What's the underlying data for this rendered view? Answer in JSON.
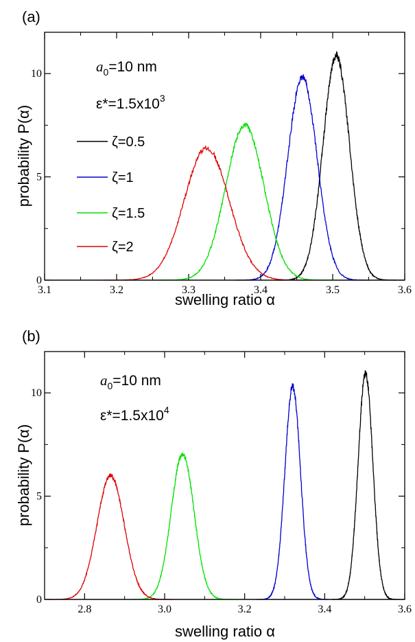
{
  "chart_data": [
    {
      "type": "line",
      "panel_label": "(a)",
      "xlabel": "swelling ratio  α",
      "ylabel": "probability  P(α)",
      "xlim": [
        3.1,
        3.6
      ],
      "ylim": [
        0,
        12
      ],
      "xticks": [
        "3.1",
        "3.2",
        "3.3",
        "3.4",
        "3.5",
        "3.6"
      ],
      "yticks": [
        "0",
        "5",
        "10"
      ],
      "xtick_values": [
        3.1,
        3.2,
        3.3,
        3.4,
        3.5,
        3.6
      ],
      "ytick_values": [
        0,
        5,
        10
      ],
      "grid": false,
      "annotations": {
        "a0_symbol": "a",
        "a0_sub": "0",
        "a0_value": "=10 nm",
        "eps_base": "ε*=1.5x10",
        "eps_exp": "3"
      },
      "legend_position": "left",
      "series": [
        {
          "name": "ζ=0.5",
          "color": "#000000",
          "mean": 3.505,
          "sigma": 0.0184,
          "peak": 10.85
        },
        {
          "name": "ζ=1",
          "color": "#0000cc",
          "mean": 3.458,
          "sigma": 0.0203,
          "peak": 9.85
        },
        {
          "name": "ζ=1.5",
          "color": "#00e000",
          "mean": 3.378,
          "sigma": 0.0267,
          "peak": 7.5
        },
        {
          "name": "ζ=2",
          "color": "#dd0000",
          "mean": 3.325,
          "sigma": 0.0312,
          "peak": 6.4
        }
      ]
    },
    {
      "type": "line",
      "panel_label": "(b)",
      "xlabel": "swelling ratio  α",
      "ylabel": "probability  P(α)",
      "xlim": [
        2.7,
        3.6
      ],
      "ylim": [
        0,
        12
      ],
      "xticks": [
        "2.8",
        "3.0",
        "3.2",
        "3.4",
        "3.6"
      ],
      "yticks": [
        "0",
        "5",
        "10"
      ],
      "xtick_values": [
        2.8,
        3.0,
        3.2,
        3.4,
        3.6
      ],
      "ytick_values": [
        0,
        5,
        10
      ],
      "grid": false,
      "annotations": {
        "a0_symbol": "a",
        "a0_sub": "0",
        "a0_value": "=10 nm",
        "eps_base": "ε*=1.5x10",
        "eps_exp": "4"
      },
      "series": [
        {
          "color": "#000000",
          "mean": 3.502,
          "sigma": 0.0184,
          "peak": 10.95
        },
        {
          "color": "#0000cc",
          "mean": 3.32,
          "sigma": 0.0195,
          "peak": 10.3
        },
        {
          "color": "#00e000",
          "mean": 3.045,
          "sigma": 0.0285,
          "peak": 7.05
        },
        {
          "color": "#dd0000",
          "mean": 2.865,
          "sigma": 0.034,
          "peak": 6.0
        }
      ]
    }
  ]
}
